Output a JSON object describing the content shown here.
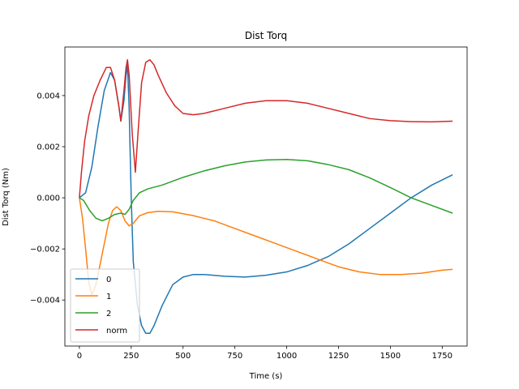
{
  "chart_data": {
    "type": "line",
    "title": "Dist Torq",
    "xlabel": "Time (s)",
    "ylabel": "Dist Torq (Nm)",
    "xlim": [
      -70,
      1870
    ],
    "ylim": [
      -0.0058,
      0.0059
    ],
    "xticks": [
      0,
      250,
      500,
      750,
      1000,
      1250,
      1500,
      1750
    ],
    "xtick_labels": [
      "0",
      "250",
      "500",
      "750",
      "1000",
      "1250",
      "1500",
      "1750"
    ],
    "yticks": [
      -0.004,
      -0.002,
      0.0,
      0.002,
      0.004
    ],
    "ytick_labels": [
      "−0.004",
      "−0.002",
      "0.000",
      "0.002",
      "0.004"
    ],
    "grid": false,
    "legend_position": "lower-left",
    "series": [
      {
        "name": "0",
        "color": "#1f77b4",
        "points": [
          [
            0,
            0
          ],
          [
            30,
            0.0002
          ],
          [
            60,
            0.0012
          ],
          [
            90,
            0.0028
          ],
          [
            120,
            0.0042
          ],
          [
            150,
            0.0049
          ],
          [
            170,
            0.0046
          ],
          [
            190,
            0.0036
          ],
          [
            200,
            0.003
          ],
          [
            215,
            0.0038
          ],
          [
            225,
            0.0048
          ],
          [
            232,
            0.0052
          ],
          [
            240,
            0.0035
          ],
          [
            250,
            0.0
          ],
          [
            260,
            -0.0025
          ],
          [
            280,
            -0.0042
          ],
          [
            300,
            -0.005
          ],
          [
            320,
            -0.0053
          ],
          [
            340,
            -0.0053
          ],
          [
            360,
            -0.005
          ],
          [
            400,
            -0.0042
          ],
          [
            450,
            -0.0034
          ],
          [
            500,
            -0.0031
          ],
          [
            550,
            -0.003
          ],
          [
            600,
            -0.003
          ],
          [
            700,
            -0.00307
          ],
          [
            800,
            -0.0031
          ],
          [
            900,
            -0.00303
          ],
          [
            1000,
            -0.0029
          ],
          [
            1100,
            -0.00265
          ],
          [
            1200,
            -0.0023
          ],
          [
            1300,
            -0.0018
          ],
          [
            1400,
            -0.0012
          ],
          [
            1500,
            -0.0006
          ],
          [
            1600,
            0.0
          ],
          [
            1700,
            0.0005
          ],
          [
            1800,
            0.0009
          ]
        ]
      },
      {
        "name": "1",
        "color": "#ff7f0e",
        "points": [
          [
            0,
            0
          ],
          [
            15,
            -0.0008
          ],
          [
            30,
            -0.002
          ],
          [
            45,
            -0.0033
          ],
          [
            60,
            -0.0038
          ],
          [
            80,
            -0.0034
          ],
          [
            110,
            -0.0022
          ],
          [
            140,
            -0.001
          ],
          [
            160,
            -0.0005
          ],
          [
            180,
            -0.00035
          ],
          [
            200,
            -0.0005
          ],
          [
            220,
            -0.0009
          ],
          [
            240,
            -0.0011
          ],
          [
            260,
            -0.001
          ],
          [
            290,
            -0.0007
          ],
          [
            330,
            -0.00058
          ],
          [
            380,
            -0.00053
          ],
          [
            450,
            -0.00055
          ],
          [
            550,
            -0.0007
          ],
          [
            650,
            -0.0009
          ],
          [
            750,
            -0.0012
          ],
          [
            850,
            -0.0015
          ],
          [
            950,
            -0.0018
          ],
          [
            1050,
            -0.0021
          ],
          [
            1150,
            -0.0024
          ],
          [
            1250,
            -0.0027
          ],
          [
            1350,
            -0.0029
          ],
          [
            1450,
            -0.003
          ],
          [
            1550,
            -0.003
          ],
          [
            1650,
            -0.00295
          ],
          [
            1750,
            -0.00283
          ],
          [
            1800,
            -0.0028
          ]
        ]
      },
      {
        "name": "2",
        "color": "#2ca02c",
        "points": [
          [
            0,
            0
          ],
          [
            20,
            -0.0001
          ],
          [
            50,
            -0.0005
          ],
          [
            80,
            -0.0008
          ],
          [
            110,
            -0.0009
          ],
          [
            140,
            -0.0008
          ],
          [
            170,
            -0.00065
          ],
          [
            200,
            -0.0006
          ],
          [
            220,
            -0.00065
          ],
          [
            240,
            -0.00045
          ],
          [
            260,
            -0.0001
          ],
          [
            290,
            0.0002
          ],
          [
            330,
            0.00035
          ],
          [
            400,
            0.0005
          ],
          [
            500,
            0.0008
          ],
          [
            600,
            0.00105
          ],
          [
            700,
            0.00125
          ],
          [
            800,
            0.0014
          ],
          [
            900,
            0.00148
          ],
          [
            1000,
            0.0015
          ],
          [
            1100,
            0.00145
          ],
          [
            1200,
            0.0013
          ],
          [
            1300,
            0.0011
          ],
          [
            1400,
            0.00078
          ],
          [
            1500,
            0.0004
          ],
          [
            1600,
            0.0
          ],
          [
            1700,
            -0.0003
          ],
          [
            1800,
            -0.0006
          ]
        ]
      },
      {
        "name": "norm",
        "color": "#d62728",
        "points": [
          [
            0,
            0
          ],
          [
            10,
            0.001
          ],
          [
            25,
            0.0022
          ],
          [
            45,
            0.0032
          ],
          [
            70,
            0.004
          ],
          [
            100,
            0.0046
          ],
          [
            130,
            0.0051
          ],
          [
            150,
            0.0051
          ],
          [
            170,
            0.0046
          ],
          [
            190,
            0.0036
          ],
          [
            200,
            0.003
          ],
          [
            215,
            0.0042
          ],
          [
            225,
            0.0051
          ],
          [
            232,
            0.0054
          ],
          [
            240,
            0.0048
          ],
          [
            255,
            0.0025
          ],
          [
            270,
            0.001
          ],
          [
            285,
            0.0028
          ],
          [
            300,
            0.0045
          ],
          [
            320,
            0.0053
          ],
          [
            340,
            0.0054
          ],
          [
            360,
            0.0052
          ],
          [
            380,
            0.0048
          ],
          [
            420,
            0.0041
          ],
          [
            460,
            0.0036
          ],
          [
            500,
            0.0033
          ],
          [
            550,
            0.00325
          ],
          [
            600,
            0.0033
          ],
          [
            700,
            0.0035
          ],
          [
            800,
            0.0037
          ],
          [
            900,
            0.0038
          ],
          [
            1000,
            0.0038
          ],
          [
            1100,
            0.0037
          ],
          [
            1200,
            0.0035
          ],
          [
            1300,
            0.0033
          ],
          [
            1400,
            0.0031
          ],
          [
            1500,
            0.00302
          ],
          [
            1600,
            0.00298
          ],
          [
            1700,
            0.00297
          ],
          [
            1800,
            0.003
          ]
        ]
      }
    ]
  }
}
